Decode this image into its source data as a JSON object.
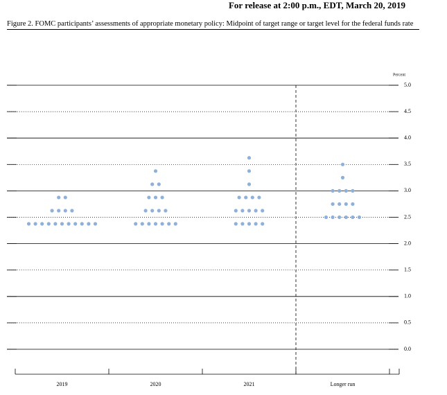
{
  "release": "For release at 2:00 p.m., EDT, March 20, 2019",
  "chart_data": {
    "type": "dot",
    "title": "Figure 2. FOMC participants’ assessments of appropriate monetary policy: Midpoint of target range or target level for the federal funds rate",
    "y_label": "Percent",
    "categories": [
      "2019",
      "2020",
      "2021",
      "Longer run"
    ],
    "points": [
      [
        {
          "value": 2.875,
          "count": 2
        },
        {
          "value": 2.625,
          "count": 4
        },
        {
          "value": 2.375,
          "count": 11
        }
      ],
      [
        {
          "value": 3.375,
          "count": 1
        },
        {
          "value": 3.125,
          "count": 2
        },
        {
          "value": 2.875,
          "count": 3
        },
        {
          "value": 2.625,
          "count": 4
        },
        {
          "value": 2.375,
          "count": 7
        }
      ],
      [
        {
          "value": 3.625,
          "count": 1
        },
        {
          "value": 3.375,
          "count": 1
        },
        {
          "value": 3.125,
          "count": 1
        },
        {
          "value": 2.875,
          "count": 4
        },
        {
          "value": 2.625,
          "count": 5
        },
        {
          "value": 2.375,
          "count": 5
        }
      ],
      [
        {
          "value": 3.5,
          "count": 1
        },
        {
          "value": 3.25,
          "count": 1
        },
        {
          "value": 3.0,
          "count": 4
        },
        {
          "value": 2.75,
          "count": 4
        },
        {
          "value": 2.5,
          "count": 6
        }
      ]
    ],
    "color": "#8fb1d9",
    "ylim": [
      0,
      5
    ],
    "yticks": [
      {
        "value": 0,
        "label": "0.0"
      },
      0.5,
      {
        "value": 1,
        "label": "1.0"
      },
      1.5,
      {
        "value": 2,
        "label": "2.0"
      },
      2.5,
      {
        "value": 3,
        "label": "3.0"
      },
      3.5,
      {
        "value": 4,
        "label": "4.0"
      },
      4.5,
      {
        "value": 5,
        "label": "5.0"
      }
    ],
    "grid": true
  }
}
